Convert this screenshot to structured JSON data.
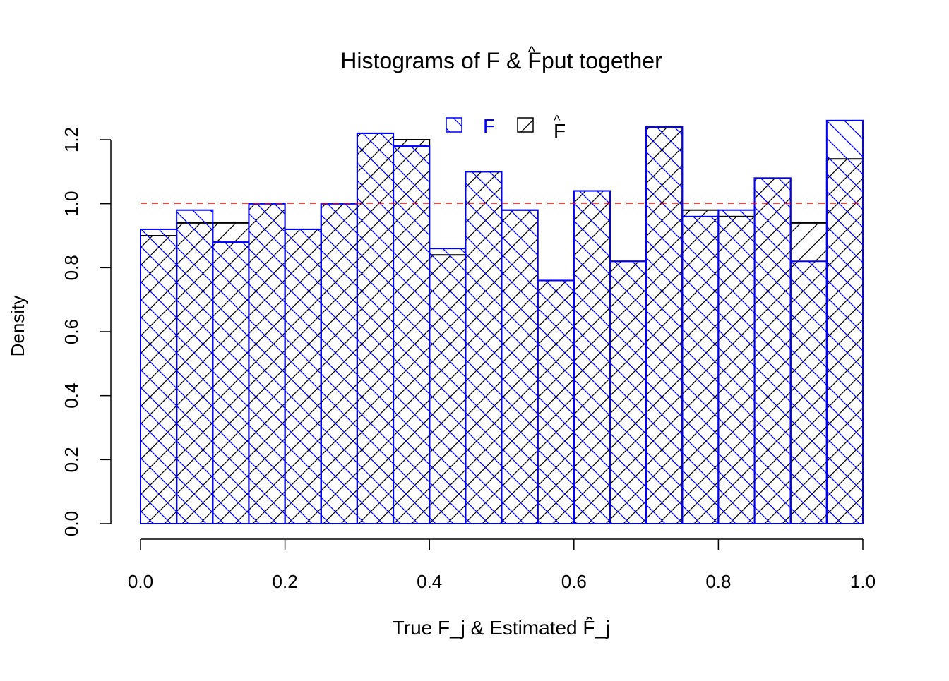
{
  "chart_data": {
    "type": "bar",
    "title": "Histograms of F & F̂ put together",
    "xlabel": "True F_j & Estimated F̂_j",
    "ylabel": "Density",
    "xlim": [
      0,
      1
    ],
    "ylim": [
      0,
      1.2
    ],
    "x_ticks": [
      "0.0",
      "0.2",
      "0.4",
      "0.6",
      "0.8",
      "1.0"
    ],
    "y_ticks": [
      "0.0",
      "0.2",
      "0.4",
      "0.6",
      "0.8",
      "1.0",
      "1.2"
    ],
    "bin_edges": [
      0,
      0.05,
      0.1,
      0.15,
      0.2,
      0.25,
      0.3,
      0.35,
      0.4,
      0.45,
      0.5,
      0.55,
      0.6,
      0.65,
      0.7,
      0.75,
      0.8,
      0.85,
      0.9,
      0.95,
      1.0
    ],
    "reference_line": {
      "y": 1.0,
      "color": "#ff0000",
      "style": "dashed"
    },
    "legend": {
      "placement": "top",
      "entries": [
        "F",
        "F̂"
      ]
    },
    "series": [
      {
        "name": "F",
        "color": "#0000ff",
        "hatch": "backslash",
        "values": [
          0.92,
          0.98,
          0.88,
          1.0,
          0.92,
          1.0,
          1.22,
          1.18,
          0.86,
          1.1,
          0.98,
          0.76,
          1.04,
          0.82,
          1.24,
          0.96,
          0.98,
          1.08,
          0.82,
          1.26
        ]
      },
      {
        "name": "F̂",
        "color": "#000000",
        "hatch": "slash",
        "values": [
          0.9,
          0.94,
          0.94,
          1.0,
          0.92,
          1.0,
          1.22,
          1.2,
          0.84,
          1.1,
          0.98,
          0.76,
          1.04,
          0.82,
          1.24,
          0.98,
          0.96,
          1.08,
          0.94,
          1.14
        ]
      }
    ]
  }
}
